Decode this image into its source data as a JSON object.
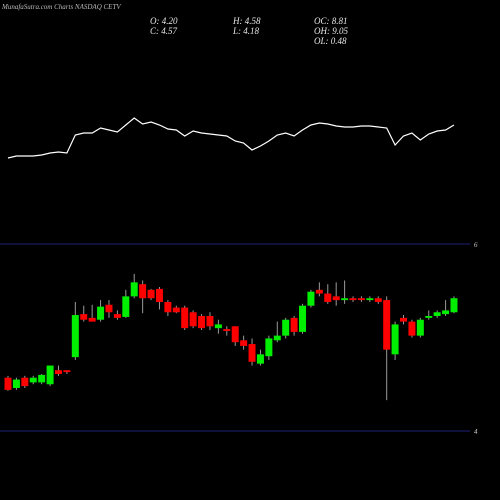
{
  "chart_data": {
    "type": "candlestick",
    "title": "MunafaSutra.com Charts NASDAQ CETV",
    "stats": [
      "O: 4.20",
      "H: 4.58",
      "OC: 8.81",
      "C: 4.57",
      "L: 4.18",
      "OH: 9.05",
      "OL: 0.48"
    ],
    "up_color": "#00ee00",
    "down_color": "#ff0000",
    "wick_color": "#9a9a9a",
    "grid": true,
    "grid_color": "#1f1f7a",
    "ylim": [
      4,
      6
    ],
    "yticks": [
      4,
      6
    ],
    "ohlc": [
      [
        4.57,
        4.59,
        4.43,
        4.44
      ],
      [
        4.46,
        4.57,
        4.44,
        4.55
      ],
      [
        4.57,
        4.59,
        4.46,
        4.48
      ],
      [
        4.52,
        4.59,
        4.5,
        4.57
      ],
      [
        4.52,
        4.61,
        4.5,
        4.6
      ],
      [
        4.5,
        4.7,
        4.48,
        4.7
      ],
      [
        4.65,
        4.7,
        4.59,
        4.61
      ],
      [
        4.65,
        4.65,
        4.61,
        4.63
      ],
      [
        4.79,
        5.38,
        4.76,
        5.24
      ],
      [
        5.25,
        5.34,
        5.17,
        5.19
      ],
      [
        5.21,
        5.35,
        5.17,
        5.17
      ],
      [
        5.19,
        5.4,
        5.17,
        5.33
      ],
      [
        5.35,
        5.4,
        5.21,
        5.27
      ],
      [
        5.25,
        5.29,
        5.19,
        5.21
      ],
      [
        5.22,
        5.51,
        5.21,
        5.44
      ],
      [
        5.44,
        5.68,
        5.42,
        5.59
      ],
      [
        5.57,
        5.61,
        5.26,
        5.42
      ],
      [
        5.51,
        5.52,
        5.4,
        5.42
      ],
      [
        5.52,
        5.54,
        5.3,
        5.38
      ],
      [
        5.38,
        5.4,
        5.23,
        5.27
      ],
      [
        5.32,
        5.34,
        5.26,
        5.27
      ],
      [
        5.32,
        5.34,
        5.08,
        5.1
      ],
      [
        5.27,
        5.29,
        5.1,
        5.12
      ],
      [
        5.23,
        5.25,
        5.08,
        5.1
      ],
      [
        5.23,
        5.27,
        5.08,
        5.12
      ],
      [
        5.1,
        5.19,
        5.04,
        5.14
      ],
      [
        5.09,
        5.12,
        5.02,
        5.07
      ],
      [
        5.12,
        5.12,
        4.91,
        4.95
      ],
      [
        4.97,
        5.02,
        4.87,
        4.91
      ],
      [
        4.93,
        4.99,
        4.7,
        4.74
      ],
      [
        4.72,
        4.87,
        4.7,
        4.82
      ],
      [
        4.8,
        5.02,
        4.76,
        4.99
      ],
      [
        4.97,
        5.17,
        4.95,
        5.02
      ],
      [
        5.02,
        5.21,
        4.99,
        5.19
      ],
      [
        5.21,
        5.23,
        5.02,
        5.06
      ],
      [
        5.06,
        5.36,
        5.04,
        5.34
      ],
      [
        5.34,
        5.51,
        5.32,
        5.49
      ],
      [
        5.51,
        5.59,
        5.44,
        5.47
      ],
      [
        5.47,
        5.57,
        5.36,
        5.38
      ],
      [
        5.44,
        5.59,
        5.34,
        5.4
      ],
      [
        5.4,
        5.61,
        5.36,
        5.42
      ],
      [
        5.42,
        5.44,
        5.38,
        5.4
      ],
      [
        5.42,
        5.44,
        5.38,
        5.4
      ],
      [
        5.4,
        5.44,
        5.38,
        5.42
      ],
      [
        5.42,
        5.44,
        5.36,
        5.38
      ],
      [
        5.4,
        5.44,
        4.33,
        4.87
      ],
      [
        4.82,
        5.17,
        4.76,
        5.14
      ],
      [
        5.21,
        5.24,
        5.14,
        5.17
      ],
      [
        5.17,
        5.19,
        5.0,
        5.02
      ],
      [
        5.02,
        5.21,
        5.0,
        5.19
      ],
      [
        5.21,
        5.29,
        5.19,
        5.23
      ],
      [
        5.23,
        5.29,
        5.21,
        5.27
      ],
      [
        5.25,
        5.4,
        5.23,
        5.29
      ],
      [
        5.27,
        5.44,
        5.26,
        5.42
      ]
    ],
    "indicator": {
      "color": "#ffffff",
      "ylim": [
        0,
        80
      ],
      "values": [
        22,
        24,
        24,
        24,
        25,
        27,
        28,
        27,
        45,
        47,
        47,
        52,
        50,
        48,
        55,
        62,
        56,
        58,
        55,
        51,
        50,
        44,
        49,
        47,
        46,
        45,
        44,
        39,
        37,
        30,
        34,
        39,
        45,
        47,
        44,
        50,
        55,
        57,
        56,
        54,
        53,
        53,
        54,
        54,
        53,
        52,
        35,
        44,
        47,
        40,
        46,
        49,
        50,
        55
      ]
    }
  }
}
